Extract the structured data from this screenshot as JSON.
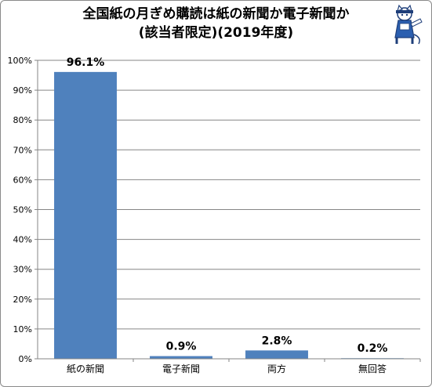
{
  "title_line1": "全国紙の月ぎめ購読は紙の新聞か電子新聞か",
  "title_line2": "(該当者限定)(2019年度)",
  "chart_data": {
    "type": "bar",
    "categories": [
      "紙の新聞",
      "電子新聞",
      "両方",
      "無回答"
    ],
    "values": [
      96.1,
      0.9,
      2.8,
      0.2
    ],
    "data_labels": [
      "96.1%",
      "0.9%",
      "2.8%",
      "0.2%"
    ],
    "yticks": [
      "0%",
      "10%",
      "20%",
      "30%",
      "40%",
      "50%",
      "60%",
      "70%",
      "80%",
      "90%",
      "100%"
    ],
    "ylim": [
      0,
      100
    ],
    "grid": true,
    "bar_color": "#4f81bd"
  }
}
